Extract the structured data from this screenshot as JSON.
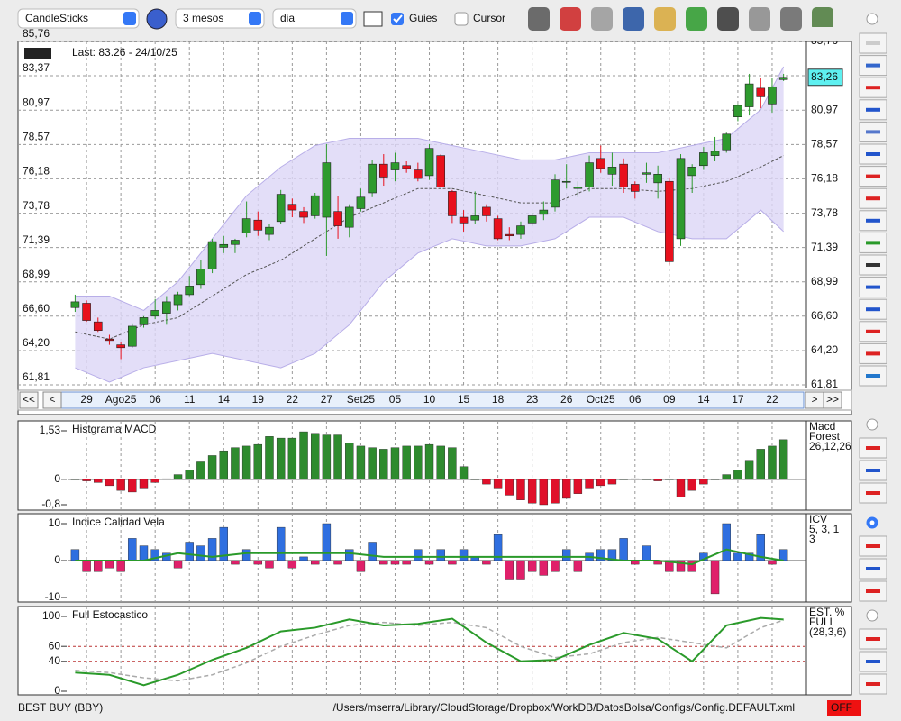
{
  "toolbar": {
    "chart_type": "CandleSticks",
    "period": "3 mesos",
    "interval": "dia",
    "guides": "Guies",
    "cursor": "Cursor"
  },
  "main": {
    "type": "candlestick",
    "last": "Last: 83.26 - 24/10/25",
    "last_value": {
      "value": 83.26,
      "label": "83,26"
    },
    "ylim": [
      61.81,
      85.76
    ],
    "yticks": [
      {
        "value": 85.76,
        "label": "85,76"
      },
      {
        "value": 83.37,
        "label": "83,37"
      },
      {
        "value": 80.97,
        "label": "80,97"
      },
      {
        "value": 78.57,
        "label": "78,57"
      },
      {
        "value": 76.18,
        "label": "76,18"
      },
      {
        "value": 73.78,
        "label": "73,78"
      },
      {
        "value": 71.39,
        "label": "71,39"
      },
      {
        "value": 68.99,
        "label": "68,99"
      },
      {
        "value": 66.6,
        "label": "66,60"
      },
      {
        "value": 64.2,
        "label": "64,20"
      },
      {
        "value": 61.81,
        "label": "61,81"
      }
    ],
    "xlim": [
      -5,
      64
    ],
    "xticks": [
      {
        "value": 1,
        "label": "29"
      },
      {
        "value": 4,
        "label": "Ago25"
      },
      {
        "value": 7,
        "label": "06"
      },
      {
        "value": 10,
        "label": "11"
      },
      {
        "value": 13,
        "label": "14"
      },
      {
        "value": 16,
        "label": "19"
      },
      {
        "value": 19,
        "label": "22"
      },
      {
        "value": 22,
        "label": "27"
      },
      {
        "value": 25,
        "label": "Set25"
      },
      {
        "value": 28,
        "label": "05"
      },
      {
        "value": 31,
        "label": "10"
      },
      {
        "value": 34,
        "label": "15"
      },
      {
        "value": 37,
        "label": "18"
      },
      {
        "value": 40,
        "label": "23"
      },
      {
        "value": 43,
        "label": "26"
      },
      {
        "value": 46,
        "label": "Oct25"
      },
      {
        "value": 49,
        "label": "06"
      },
      {
        "value": 52,
        "label": "09"
      },
      {
        "value": 55,
        "label": "14"
      },
      {
        "value": 58,
        "label": "17"
      },
      {
        "value": 61,
        "label": "22"
      }
    ],
    "candles": [
      [
        67.2,
        68.1,
        66.9,
        67.6
      ],
      [
        67.5,
        67.7,
        66.2,
        66.3
      ],
      [
        66.2,
        66.5,
        65.5,
        65.6
      ],
      [
        65.0,
        65.3,
        64.6,
        64.9
      ],
      [
        64.6,
        64.8,
        63.6,
        64.4
      ],
      [
        64.5,
        66.1,
        64.4,
        65.9
      ],
      [
        66.0,
        66.6,
        65.8,
        66.5
      ],
      [
        66.6,
        67.8,
        66.4,
        67.0
      ],
      [
        66.8,
        68.0,
        66.0,
        67.6
      ],
      [
        67.4,
        68.3,
        67.0,
        68.1
      ],
      [
        68.1,
        69.4,
        68.0,
        68.7
      ],
      [
        68.8,
        70.5,
        68.5,
        69.9
      ],
      [
        69.9,
        72.0,
        69.6,
        71.8
      ],
      [
        71.4,
        72.2,
        71.0,
        71.6
      ],
      [
        71.6,
        72.0,
        71.0,
        71.9
      ],
      [
        72.4,
        74.6,
        72.1,
        73.4
      ],
      [
        73.3,
        73.9,
        72.2,
        72.6
      ],
      [
        72.3,
        73.0,
        71.9,
        72.8
      ],
      [
        73.2,
        75.4,
        73.0,
        75.1
      ],
      [
        74.4,
        74.8,
        73.5,
        74.0
      ],
      [
        73.9,
        74.2,
        73.1,
        73.5
      ],
      [
        73.6,
        75.2,
        73.4,
        75.0
      ],
      [
        73.5,
        78.6,
        70.8,
        77.3
      ],
      [
        73.9,
        75.0,
        72.0,
        72.9
      ],
      [
        72.8,
        74.4,
        72.1,
        74.2
      ],
      [
        74.1,
        75.5,
        73.9,
        74.9
      ],
      [
        75.2,
        77.5,
        74.9,
        77.2
      ],
      [
        77.2,
        77.9,
        75.7,
        76.3
      ],
      [
        76.8,
        78.0,
        76.0,
        77.3
      ],
      [
        77.1,
        77.4,
        76.6,
        76.9
      ],
      [
        76.8,
        77.3,
        76.0,
        76.2
      ],
      [
        76.4,
        78.6,
        76.1,
        78.3
      ],
      [
        77.8,
        77.9,
        75.6,
        75.6
      ],
      [
        75.3,
        75.4,
        73.1,
        73.6
      ],
      [
        73.5,
        74.0,
        72.5,
        73.1
      ],
      [
        73.3,
        75.3,
        73.0,
        73.6
      ],
      [
        74.2,
        74.4,
        73.2,
        73.6
      ],
      [
        73.4,
        73.6,
        71.9,
        72.0
      ],
      [
        72.3,
        72.8,
        71.9,
        72.2
      ],
      [
        72.3,
        73.2,
        72.0,
        72.9
      ],
      [
        73.1,
        73.8,
        72.9,
        73.6
      ],
      [
        73.7,
        74.6,
        73.3,
        74.0
      ],
      [
        74.2,
        76.5,
        73.9,
        76.1
      ],
      [
        76.0,
        77.2,
        75.5,
        76.0
      ],
      [
        75.5,
        76.0,
        74.9,
        75.6
      ],
      [
        75.6,
        77.8,
        75.3,
        77.3
      ],
      [
        77.6,
        78.5,
        76.6,
        76.9
      ],
      [
        76.5,
        78.0,
        75.7,
        77.0
      ],
      [
        77.2,
        77.6,
        75.2,
        75.6
      ],
      [
        75.8,
        76.0,
        74.8,
        75.3
      ],
      [
        76.5,
        77.3,
        75.9,
        76.6
      ],
      [
        75.9,
        77.1,
        74.8,
        76.5
      ],
      [
        76.0,
        76.2,
        70.2,
        70.4
      ],
      [
        72.0,
        77.9,
        71.5,
        77.6
      ],
      [
        76.4,
        77.2,
        75.2,
        77.0
      ],
      [
        77.1,
        78.4,
        76.8,
        78.0
      ],
      [
        77.8,
        79.1,
        77.4,
        78.1
      ],
      [
        78.2,
        79.4,
        78.0,
        79.3
      ],
      [
        80.5,
        81.4,
        80.2,
        81.3
      ],
      [
        81.2,
        83.5,
        80.6,
        82.8
      ],
      [
        82.5,
        83.2,
        81.1,
        81.9
      ],
      [
        81.4,
        83.2,
        80.8,
        82.6
      ],
      [
        83.1,
        83.5,
        83.0,
        83.26
      ]
    ],
    "up_color": "#2e9a2e",
    "down_color": "#e8101c",
    "bands": {
      "x": [
        0,
        3,
        6,
        9,
        12,
        15,
        18,
        21,
        24,
        27,
        30,
        33,
        36,
        39,
        42,
        45,
        48,
        51,
        54,
        57,
        60,
        62
      ],
      "upper": [
        68,
        68,
        67,
        69,
        72,
        75,
        77,
        78.5,
        79,
        79,
        79,
        78.5,
        78,
        77.5,
        77.5,
        78,
        78,
        78,
        78.5,
        79,
        81,
        84
      ],
      "middle": [
        65.5,
        65,
        66,
        66.5,
        68,
        69.5,
        70.5,
        72,
        73.5,
        74.5,
        75.5,
        75.5,
        75,
        74.5,
        74.5,
        75.5,
        75.5,
        75.3,
        75.5,
        76,
        77,
        77.8
      ],
      "lower": [
        63,
        62,
        63,
        63.5,
        64,
        63.5,
        63,
        64,
        66,
        69,
        71,
        72,
        71.5,
        71.5,
        72,
        73.5,
        73.5,
        72.5,
        72,
        72,
        74,
        72.5
      ],
      "color": "#dcd6f6"
    },
    "nav": [
      "<<",
      "<",
      ">",
      ">>"
    ]
  },
  "macd": {
    "type": "bar",
    "title": "Histgrama MACD",
    "legend": [
      "Macd",
      "Forest",
      "26,12,26"
    ],
    "ylim": [
      -0.8,
      1.53
    ],
    "yticks": [
      {
        "value": 1.53,
        "label": "1,53"
      },
      0,
      {
        "value": -0.8,
        "label": "-0,8"
      }
    ],
    "values": [
      0,
      -0.05,
      -0.1,
      -0.2,
      -0.35,
      -0.4,
      -0.3,
      -0.1,
      0.02,
      0.15,
      0.3,
      0.55,
      0.75,
      0.9,
      1.0,
      1.05,
      1.1,
      1.35,
      1.3,
      1.3,
      1.5,
      1.45,
      1.4,
      1.4,
      1.15,
      1.05,
      1.0,
      0.95,
      1.0,
      1.05,
      1.05,
      1.1,
      1.05,
      1.0,
      0.4,
      0,
      -0.15,
      -0.3,
      -0.5,
      -0.65,
      -0.75,
      -0.8,
      -0.75,
      -0.6,
      -0.45,
      -0.3,
      -0.2,
      -0.15,
      0,
      0.02,
      0,
      -0.05,
      0,
      -0.55,
      -0.35,
      -0.15,
      0,
      0.15,
      0.3,
      0.6,
      0.95,
      1.05,
      1.25
    ],
    "pos_color": "#2e8b2e",
    "neg_color": "#e0102a"
  },
  "icv": {
    "type": "bar",
    "title": "Indice Calidad Vela",
    "legend": [
      "ICV",
      "5, 3, 1",
      "3"
    ],
    "ylim": [
      -10,
      10
    ],
    "yticks": [
      10,
      0,
      -10
    ],
    "values": [
      3,
      -3,
      -3,
      -2,
      -3,
      6,
      4,
      3,
      2,
      -2,
      5,
      4,
      6,
      9,
      -1,
      3,
      -1,
      -2,
      9,
      -2,
      1,
      -1,
      10,
      -1,
      3,
      -3,
      5,
      -1,
      -1,
      -1,
      3,
      -1,
      3,
      -1,
      3,
      1,
      -1,
      7,
      -5,
      -5,
      -3,
      -4,
      -3,
      3,
      -3,
      2,
      3,
      3,
      6,
      -1,
      4,
      -1,
      -3,
      -3,
      -3,
      2,
      -9,
      10,
      2,
      2,
      7,
      -1,
      3
    ],
    "pos_color": "#2f6fe0",
    "neg_color": "#e0206a",
    "line": {
      "x": [
        0,
        3,
        6,
        9,
        12,
        15,
        18,
        21,
        24,
        27,
        30,
        33,
        36,
        39,
        42,
        45,
        48,
        51,
        54,
        57,
        60,
        62
      ],
      "values": [
        0,
        0,
        0,
        2,
        1,
        2,
        2,
        2,
        2,
        1,
        1,
        1,
        1,
        1,
        1,
        1,
        0,
        0,
        -1,
        3,
        1,
        0
      ],
      "color": "#2a9a2a"
    }
  },
  "stoch": {
    "type": "line",
    "title": "Full Estocastico",
    "legend": [
      "EST. %",
      "FULL",
      "(28,3,6)"
    ],
    "ylim": [
      0,
      100
    ],
    "yticks": [
      100,
      60,
      40,
      0
    ],
    "reference_lines": [
      60,
      40
    ],
    "x": [
      0,
      3,
      6,
      9,
      12,
      15,
      18,
      21,
      24,
      27,
      30,
      33,
      36,
      39,
      42,
      45,
      48,
      51,
      54,
      57,
      60,
      62
    ],
    "series": [
      {
        "color": "#2a9a2a",
        "values": [
          25,
          22,
          8,
          22,
          42,
          58,
          80,
          85,
          96,
          88,
          90,
          97,
          65,
          40,
          42,
          62,
          78,
          70,
          40,
          88,
          98,
          96
        ]
      },
      {
        "color": "#aaaaaa",
        "values": [
          28,
          25,
          18,
          14,
          22,
          38,
          60,
          75,
          88,
          92,
          88,
          92,
          85,
          60,
          45,
          50,
          65,
          72,
          65,
          58,
          85,
          95
        ]
      }
    ]
  },
  "footer": {
    "symbol": "BEST BUY (BBY)",
    "path": "/Users/mserra/Library/CloudStorage/Dropbox/WorkDB/DatosBolsa/Configs/Config.DEFAULT.xml",
    "status": "OFF"
  }
}
